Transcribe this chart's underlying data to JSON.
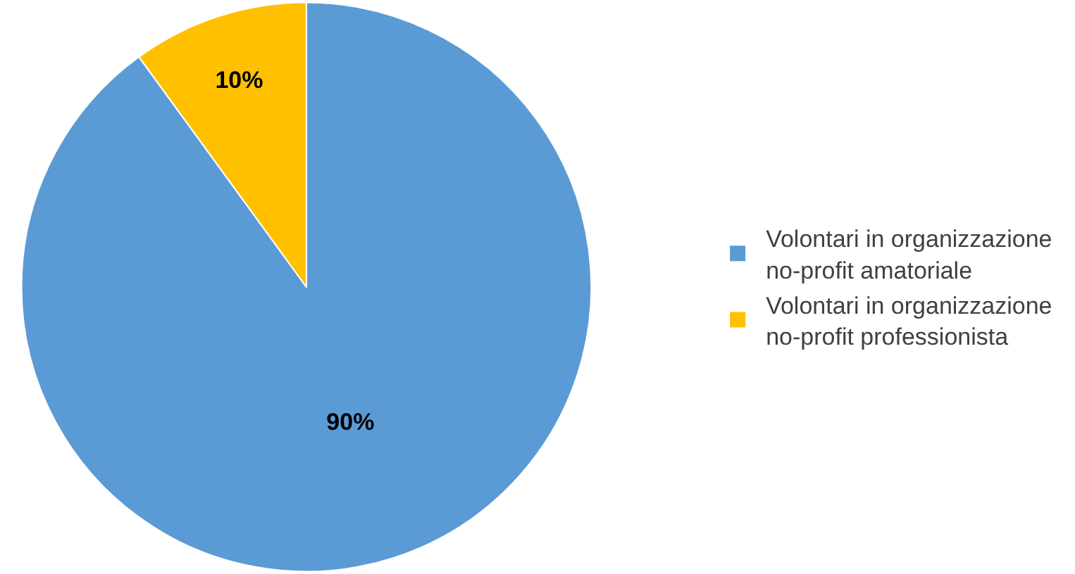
{
  "chart_data": {
    "type": "pie",
    "categories": [
      "Volontari in organizzazione no-profit amatoriale",
      "Volontari in organizzazione no-profit professionista"
    ],
    "values": [
      90,
      10
    ],
    "colors": [
      "#5b9bd5",
      "#ffc000"
    ],
    "value_labels": [
      "90%",
      "10%"
    ],
    "legend": "right"
  }
}
